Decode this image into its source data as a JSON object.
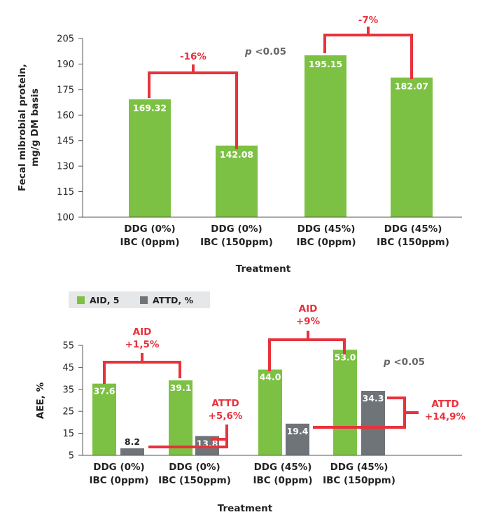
{
  "colors": {
    "green": "#7cc143",
    "gray": "#6f7479",
    "red": "#e8323c",
    "legend_bg": "#e6e7e8"
  },
  "chart_data": [
    {
      "type": "bar",
      "ylabel_line1": "Fecal mibrobial protein,",
      "ylabel_line2": "mg/g DM basis",
      "xlabel": "Treatment",
      "ylim": [
        100,
        205
      ],
      "yticks": [
        100,
        115,
        130,
        145,
        160,
        175,
        190,
        205
      ],
      "categories": [
        [
          "DDG (0%)",
          "IBC (0ppm)"
        ],
        [
          "DDG (0%)",
          "IBC (150ppm)"
        ],
        [
          "DDG (45%)",
          "IBC (0ppm)"
        ],
        [
          "DDG (45%)",
          "IBC (150ppm)"
        ]
      ],
      "series": [
        {
          "values": [
            169.32,
            142.08,
            195.15,
            182.07
          ],
          "labels": [
            "169.32",
            "142.08",
            "195.15",
            "182.07"
          ]
        }
      ],
      "annotations": [
        {
          "text": "-16%",
          "from": 0,
          "to": 1
        },
        {
          "text": "-7%",
          "from": 2,
          "to": 3
        }
      ],
      "p_prefix": "p",
      "p_value": " <0.05"
    },
    {
      "type": "bar",
      "ylabel": "AEE, %",
      "xlabel": "Treatment",
      "ylim": [
        5,
        55
      ],
      "yticks": [
        5,
        15,
        25,
        35,
        45,
        55
      ],
      "categories": [
        [
          "DDG (0%)",
          "IBC (0ppm)"
        ],
        [
          "DDG (0%)",
          "IBC (150ppm)"
        ],
        [
          "DDG (45%)",
          "IBC (0ppm)"
        ],
        [
          "DDG (45%)",
          "IBC (150ppm)"
        ]
      ],
      "legend": [
        {
          "name": "AID, 5"
        },
        {
          "name": "ATTD, %"
        }
      ],
      "series": [
        {
          "name": "AID, 5",
          "values": [
            37.6,
            39.1,
            44.0,
            53.0
          ],
          "labels": [
            "37.6",
            "39.1",
            "44.0",
            "53.0"
          ]
        },
        {
          "name": "ATTD, %",
          "values": [
            8.2,
            13.8,
            19.4,
            34.3
          ],
          "labels": [
            "8.2",
            "13.8",
            "19.4",
            "34.3"
          ]
        }
      ],
      "annotations": [
        {
          "title": "AID",
          "text": "+1,5%"
        },
        {
          "title": "AID",
          "text": "+9%"
        },
        {
          "title": "ATTD",
          "text": "+5,6%"
        },
        {
          "title": "ATTD",
          "text": "+14,9%"
        }
      ],
      "p_prefix": "p",
      "p_value": " <0.05"
    }
  ]
}
